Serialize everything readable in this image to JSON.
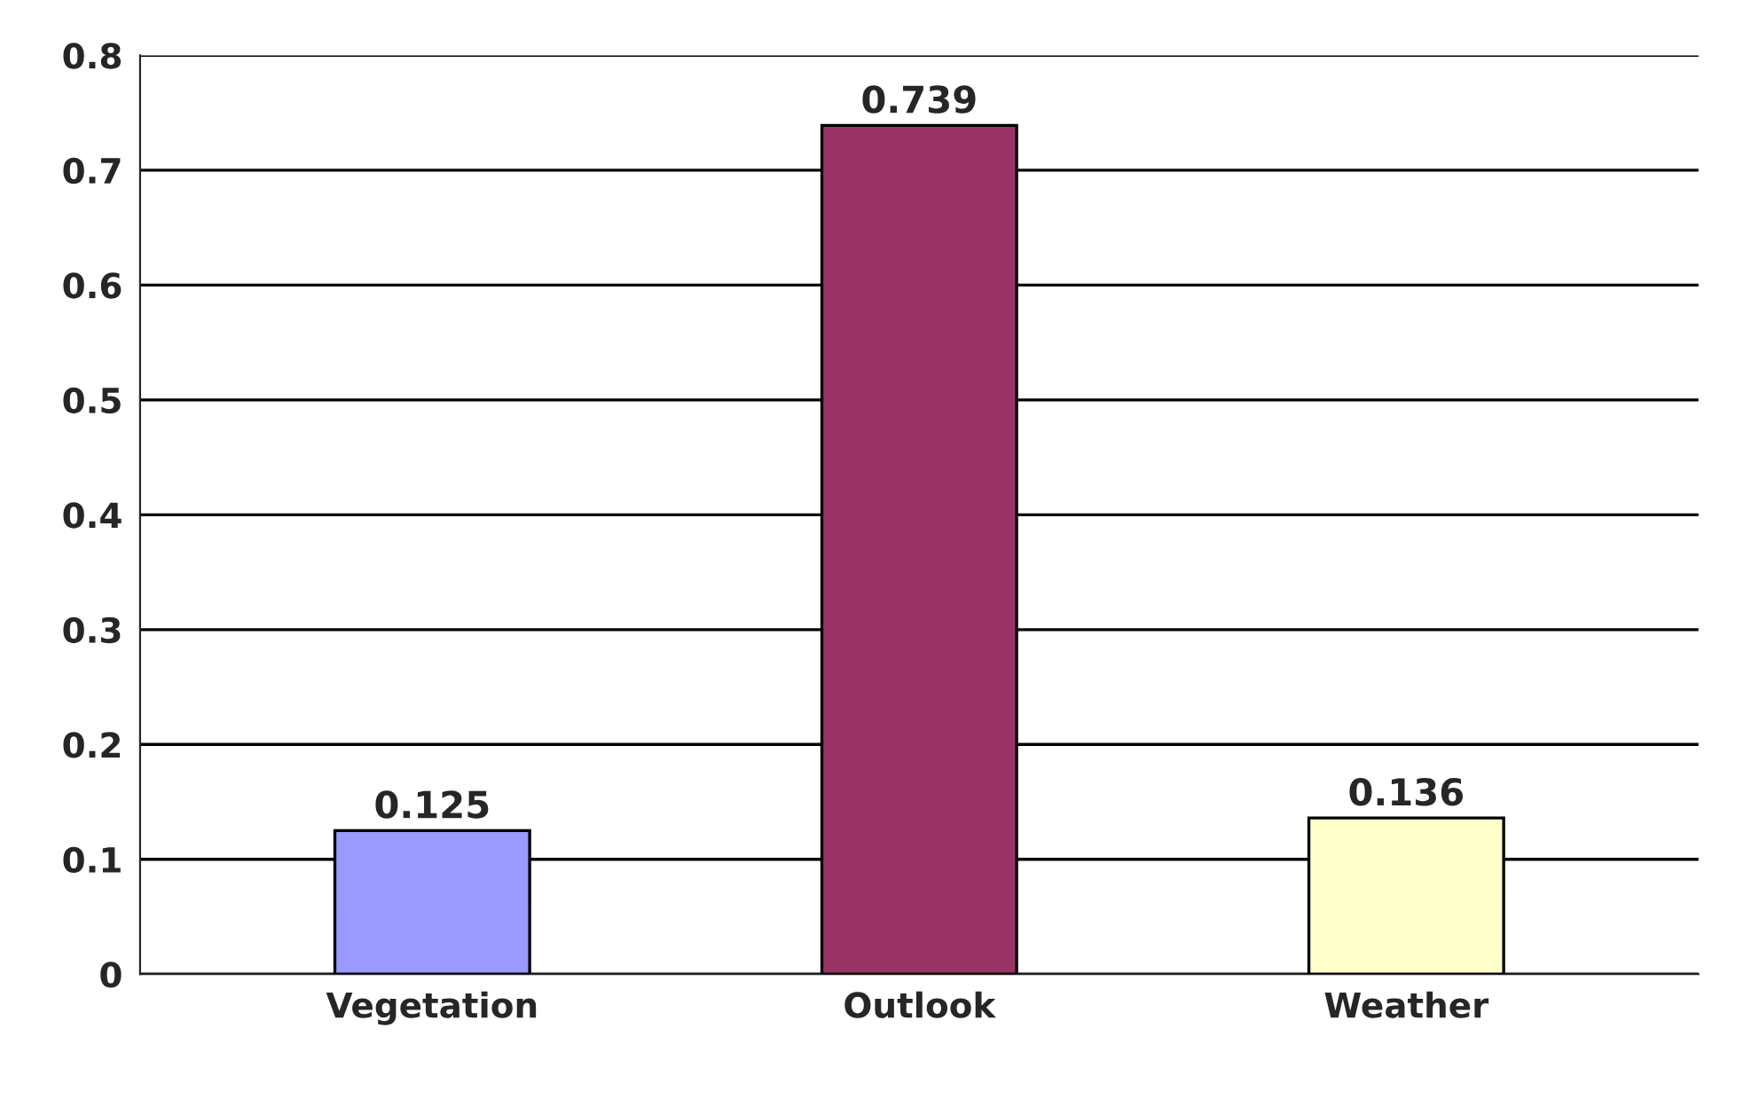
{
  "chart_data": {
    "type": "bar",
    "categories": [
      "Vegetation",
      "Outlook",
      "Weather"
    ],
    "values": [
      0.125,
      0.739,
      0.136
    ],
    "colors": [
      "#9999ff",
      "#993366",
      "#ffffcc"
    ],
    "ylim": [
      0,
      0.8
    ],
    "yticks": [
      0,
      0.1,
      0.2,
      0.3,
      0.4,
      0.5,
      0.6,
      0.7,
      0.8
    ],
    "grid": "y",
    "data_labels": true
  }
}
